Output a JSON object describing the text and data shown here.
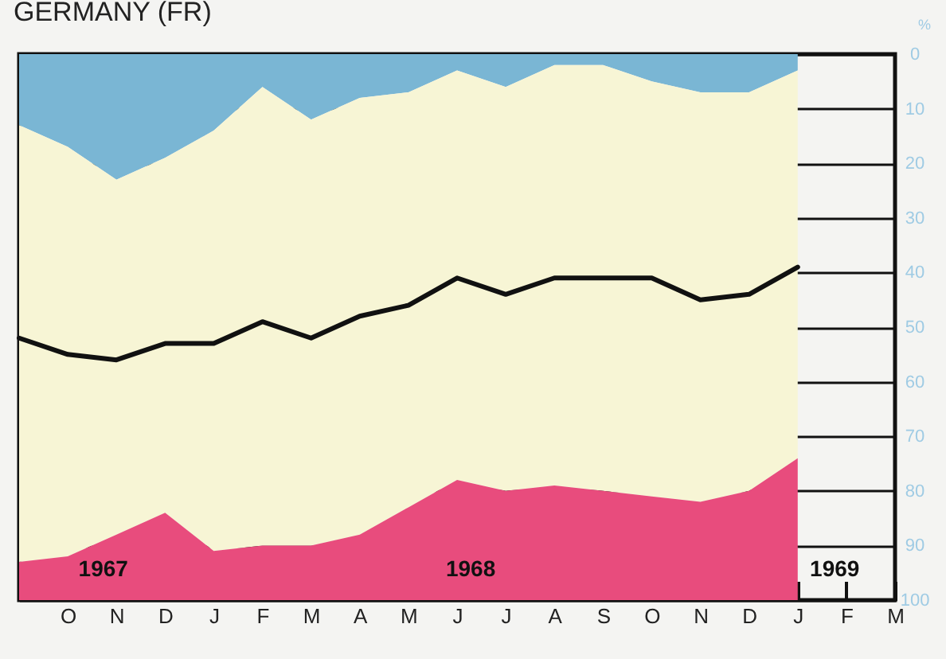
{
  "chart_data": {
    "type": "area",
    "title": "GERMANY (FR)",
    "ylabel": "%",
    "categories": [
      null,
      "O",
      "N",
      "D",
      "J",
      "F",
      "M",
      "A",
      "M",
      "J",
      "J",
      "A",
      "S",
      "O",
      "N",
      "D",
      "J",
      "F",
      "M"
    ],
    "series": [
      {
        "type": "area",
        "color": "#7ab6d4",
        "values": [
          13,
          17,
          23,
          19,
          14,
          6,
          12,
          8,
          7,
          3,
          6,
          2,
          2,
          5,
          7,
          7,
          3,
          null,
          null
        ]
      },
      {
        "type": "area",
        "color": "#f7f5d5",
        "values": [
          80,
          75,
          65,
          65,
          77,
          84,
          78,
          80,
          76,
          75,
          74,
          77,
          78,
          76,
          75,
          73,
          71,
          null,
          null
        ]
      },
      {
        "type": "area",
        "color": "#e84c7d",
        "values": [
          7,
          8,
          12,
          16,
          9,
          10,
          10,
          12,
          17,
          22,
          20,
          21,
          20,
          19,
          18,
          20,
          26,
          null,
          null
        ]
      },
      {
        "type": "line",
        "color": "#111111",
        "values": [
          52,
          55,
          56,
          53,
          53,
          49,
          52,
          48,
          46,
          41,
          44,
          41,
          41,
          41,
          45,
          44,
          39,
          null,
          null
        ]
      }
    ],
    "ylim": [
      100,
      0
    ],
    "yticks": [
      0,
      10,
      20,
      30,
      40,
      50,
      60,
      70,
      80,
      90,
      100
    ],
    "stacked": true,
    "grid": "y",
    "marker": "none",
    "annotations": [
      "1967",
      "1968",
      "1969"
    ]
  }
}
